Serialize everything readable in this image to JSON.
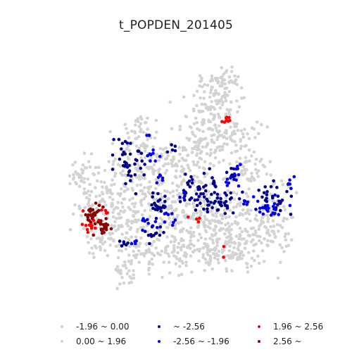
{
  "title": "t_POPDEN_201405",
  "colors": {
    "background_points": "#d3d3d3",
    "neg_strong": "#00008b",
    "neg_moderate": "#0000ff",
    "pos_moderate": "#ff0000",
    "pos_strong": "#8b0000"
  },
  "legend": {
    "items": [
      {
        "label": "-1.96 ~ 0.00",
        "color": "#d3d3d3"
      },
      {
        "label": "0.00 ~ 1.96",
        "color": "#d3d3d3"
      },
      {
        "label": "~ -2.56",
        "color": "#00008b"
      },
      {
        "label": "-2.56 ~ -1.96",
        "color": "#0000ff"
      },
      {
        "label": "1.96 ~ 2.56",
        "color": "#ff0000"
      },
      {
        "label": "2.56 ~",
        "color": "#8b0000"
      }
    ]
  }
}
